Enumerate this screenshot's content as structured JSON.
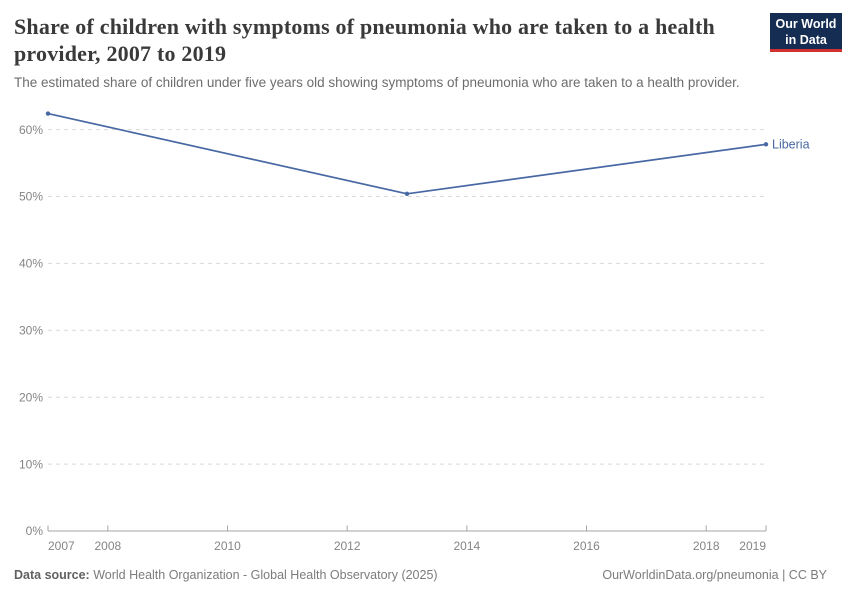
{
  "header": {
    "title": "Share of children with symptoms of pneumonia who are taken to a health provider, 2007 to 2019",
    "subtitle": "The estimated share of children under five years old showing symptoms of pneumonia who are taken to a health provider.",
    "logo": {
      "line1": "Our World",
      "line2": "in Data"
    }
  },
  "chart_data": {
    "type": "line",
    "title": "Share of children with symptoms of pneumonia who are taken to a health provider, 2007 to 2019",
    "series": [
      {
        "name": "Liberia",
        "x": [
          2007,
          2013,
          2019
        ],
        "values": [
          62.4,
          50.4,
          57.8
        ],
        "color": "#4868a3"
      }
    ],
    "x_ticks": [
      2007,
      2008,
      2010,
      2012,
      2014,
      2016,
      2018,
      2019
    ],
    "y_ticks": [
      0,
      10,
      20,
      30,
      40,
      50,
      60
    ],
    "y_tick_suffix": "%",
    "xlim": [
      2007,
      2019
    ],
    "ylim": [
      0,
      64.5
    ],
    "grid": "dashed-horizontal",
    "legend_position": "end-of-line-label",
    "colors": {
      "grid": "#d9d9d9",
      "axis": "#a6a6a6",
      "tick_label": "#858585"
    }
  },
  "footer": {
    "source_label": "Data source:",
    "source_text": " World Health Organization - Global Health Observatory (2025)",
    "right_text": "OurWorldinData.org/pneumonia | CC BY"
  }
}
